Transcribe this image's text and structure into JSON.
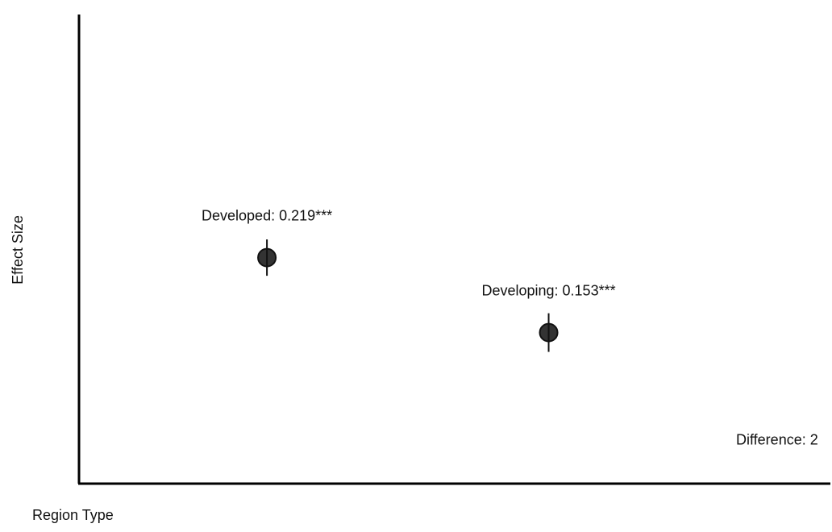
{
  "chart_data": {
    "type": "scatter",
    "title": "",
    "xlabel": "Region Type",
    "ylabel": "Effect Size",
    "categories": [
      "Developed",
      "Developing"
    ],
    "points": [
      {
        "category": "Developed",
        "x": 0,
        "y": 0.219,
        "err": 0.016,
        "label": "Developed: 0.219***"
      },
      {
        "category": "Developing",
        "x": 1,
        "y": 0.153,
        "err": 0.017,
        "label": "Developing: 0.153***"
      }
    ],
    "annotations": [
      {
        "text": "Difference: 2",
        "x": 1.85,
        "y": 0.06
      }
    ],
    "xlim": [
      -0.667,
      2.0
    ],
    "ylim": [
      0.02,
      0.433
    ],
    "grid": false,
    "tick_labels": false,
    "marker_color": "#333333",
    "axis_color": "#000000"
  }
}
